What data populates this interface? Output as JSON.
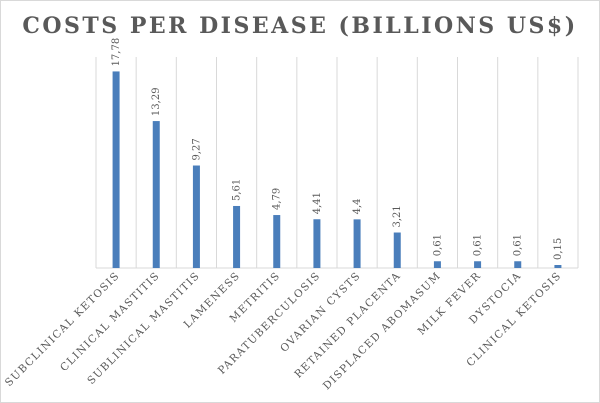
{
  "chart_data": {
    "type": "bar",
    "title": "COSTS PER DISEASE (BILLIONS US$)",
    "categories": [
      "SUBCLINICAL KETOSIS",
      "CLINICAL MASTITIS",
      "SUBLINICAL MASTITIS",
      "LAMENESS",
      "METRITIS",
      "PARATUBERCULOSIS",
      "OVARIAN CYSTS",
      "RETAINED PLACENTA",
      "DISPLACED ABOMASUM",
      "MILK FEVER",
      "DYSTOCIA",
      "CLINICAL KETOSIS"
    ],
    "values": [
      17.78,
      13.29,
      9.27,
      5.61,
      4.79,
      4.41,
      4.4,
      3.21,
      0.61,
      0.61,
      0.61,
      0.15
    ],
    "value_labels": [
      "17,78",
      "13,29",
      "9,27",
      "5,61",
      "4,79",
      "4,41",
      "4,4",
      "3,21",
      "0,61",
      "0,61",
      "0,61",
      "0,15"
    ],
    "ylim": [
      0,
      18
    ],
    "grid": "vertical",
    "legend": "none",
    "bar_color": "#4a7ebb",
    "grid_color": "#d9d9d9",
    "text_color": "#595959"
  }
}
